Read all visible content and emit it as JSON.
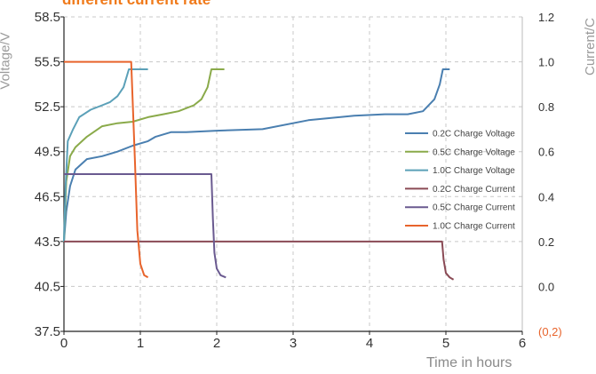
{
  "chart_data": {
    "type": "line",
    "title": "different current rate",
    "xlabel": "Time in hours",
    "ylabel_left": "Voltage/V",
    "ylabel_right": "Current/C",
    "xlim": [
      0,
      6
    ],
    "ylim_left": [
      37.5,
      58.5
    ],
    "ylim_right": [
      -0.2,
      1.2
    ],
    "x_ticks": [
      "0",
      "1",
      "2",
      "3",
      "4",
      "5",
      "6"
    ],
    "y_left_ticks": [
      "37.5",
      "40.5",
      "43.5",
      "46.5",
      "49.5",
      "52.5",
      "55.5",
      "58.5"
    ],
    "y_right_ticks": [
      "(0,2)",
      "0.0",
      "0.2",
      "0.4",
      "0.6",
      "0.8",
      "1.0",
      "1.2"
    ],
    "grid": true,
    "legend_position": "right",
    "series": [
      {
        "name": "0.2C Charge Voltage",
        "axis": "left",
        "color": "#4a7fb0",
        "points": [
          [
            0,
            43.5
          ],
          [
            0.03,
            45.5
          ],
          [
            0.08,
            47.2
          ],
          [
            0.15,
            48.3
          ],
          [
            0.3,
            49.0
          ],
          [
            0.5,
            49.2
          ],
          [
            0.7,
            49.5
          ],
          [
            0.9,
            49.9
          ],
          [
            1.1,
            50.2
          ],
          [
            1.2,
            50.5
          ],
          [
            1.4,
            50.8
          ],
          [
            1.6,
            50.8
          ],
          [
            2.0,
            50.9
          ],
          [
            2.6,
            51.0
          ],
          [
            3.2,
            51.6
          ],
          [
            3.8,
            51.9
          ],
          [
            4.2,
            52.0
          ],
          [
            4.5,
            52.0
          ],
          [
            4.7,
            52.2
          ],
          [
            4.85,
            53.0
          ],
          [
            4.92,
            54.0
          ],
          [
            4.96,
            55.0
          ],
          [
            5.0,
            55.0
          ],
          [
            5.05,
            55.0
          ]
        ]
      },
      {
        "name": "0.5C Charge Voltage",
        "axis": "left",
        "color": "#8aaa4a",
        "points": [
          [
            0,
            43.5
          ],
          [
            0.03,
            47.5
          ],
          [
            0.08,
            49.2
          ],
          [
            0.15,
            49.8
          ],
          [
            0.3,
            50.5
          ],
          [
            0.5,
            51.2
          ],
          [
            0.7,
            51.4
          ],
          [
            0.9,
            51.5
          ],
          [
            1.1,
            51.8
          ],
          [
            1.3,
            52.0
          ],
          [
            1.5,
            52.2
          ],
          [
            1.7,
            52.6
          ],
          [
            1.8,
            53.0
          ],
          [
            1.88,
            53.8
          ],
          [
            1.93,
            55.0
          ],
          [
            2.0,
            55.0
          ],
          [
            2.1,
            55.0
          ]
        ]
      },
      {
        "name": "1.0C Charge Voltage",
        "axis": "left",
        "color": "#5ba0b8",
        "points": [
          [
            0,
            43.5
          ],
          [
            0.02,
            47.0
          ],
          [
            0.05,
            50.2
          ],
          [
            0.12,
            51.0
          ],
          [
            0.2,
            51.8
          ],
          [
            0.35,
            52.3
          ],
          [
            0.5,
            52.6
          ],
          [
            0.6,
            52.8
          ],
          [
            0.7,
            53.2
          ],
          [
            0.78,
            53.8
          ],
          [
            0.85,
            55.0
          ],
          [
            0.95,
            55.0
          ],
          [
            1.1,
            55.0
          ]
        ]
      },
      {
        "name": "0.2C Charge Current",
        "axis": "right",
        "color": "#8a4a55",
        "points": [
          [
            0,
            0.2
          ],
          [
            4.95,
            0.2
          ],
          [
            4.97,
            0.12
          ],
          [
            5.0,
            0.06
          ],
          [
            5.05,
            0.04
          ],
          [
            5.1,
            0.03
          ]
        ]
      },
      {
        "name": "0.5C Charge Current",
        "axis": "right",
        "color": "#6a5a90",
        "points": [
          [
            0,
            0.5
          ],
          [
            1.93,
            0.5
          ],
          [
            1.95,
            0.3
          ],
          [
            1.97,
            0.15
          ],
          [
            2.0,
            0.08
          ],
          [
            2.05,
            0.05
          ],
          [
            2.12,
            0.04
          ]
        ]
      },
      {
        "name": "1.0C Charge Current",
        "axis": "right",
        "color": "#e8642c",
        "points": [
          [
            0,
            1.0
          ],
          [
            0.88,
            1.0
          ],
          [
            0.93,
            0.55
          ],
          [
            0.96,
            0.25
          ],
          [
            1.0,
            0.1
          ],
          [
            1.05,
            0.05
          ],
          [
            1.1,
            0.04
          ]
        ]
      }
    ]
  }
}
